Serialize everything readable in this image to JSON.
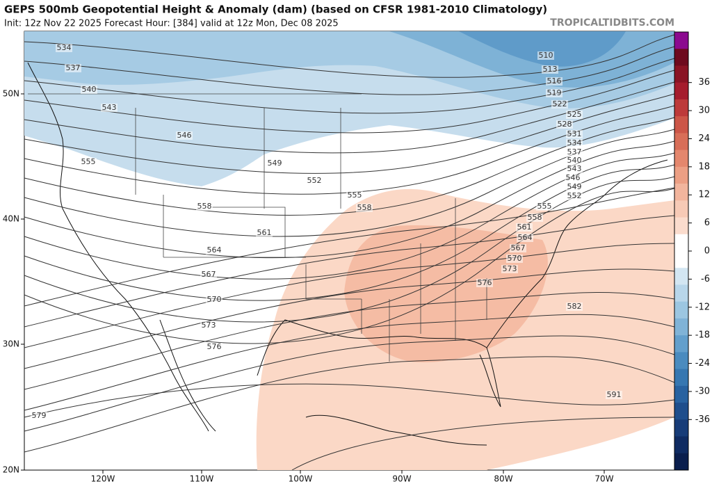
{
  "header": {
    "title": "GEPS 500mb Geopotential Height & Anomaly (dam) (based on CFSR 1981-2010 Climatology)",
    "subtitle": "Init: 12z Nov 22 2025   Forecast Hour: [384]   valid at 12z Mon, Dec 08 2025",
    "watermark": "TROPICALTIDBITS.COM"
  },
  "map": {
    "lat_labels": [
      "50N",
      "40N",
      "30N",
      "20N"
    ],
    "lon_labels": [
      "120W",
      "110W",
      "100W",
      "90W",
      "80W",
      "70W"
    ],
    "contour_labels": [
      534,
      537,
      540,
      543,
      546,
      555,
      549,
      552,
      555,
      558,
      558,
      561,
      564,
      567,
      570,
      573,
      576,
      579,
      510,
      513,
      516,
      519,
      522,
      525,
      528,
      531,
      534,
      537,
      540,
      543,
      546,
      549,
      552,
      555,
      558,
      561,
      564,
      567,
      570,
      573,
      576,
      582,
      591
    ]
  },
  "colorbar": {
    "ticks": [
      36,
      30,
      24,
      18,
      12,
      6,
      0,
      -6,
      -12,
      -18,
      -24,
      -30,
      -36
    ]
  }
}
